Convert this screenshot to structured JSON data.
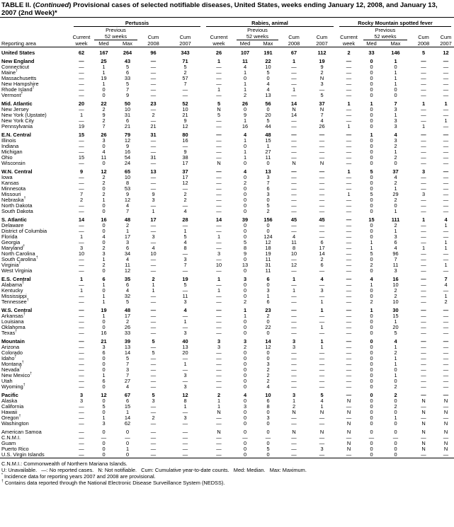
{
  "title": {
    "prefix": "TABLE II. (",
    "italic": "Continued",
    "rest": ") Provisional cases of selected notifiable diseases, United States, weeks ending January 12, 2008, and January 13, 2007 (2nd Week)*"
  },
  "groups": [
    "Pertussis",
    "Rabies, animal",
    "Rocky Mountain spotted fever"
  ],
  "headers": {
    "previous": "Previous",
    "weeks52": "52 weeks",
    "current": "Current",
    "week": "week",
    "cum": "Cum",
    "med": "Med",
    "max": "Max",
    "y2008": "2008",
    "y2007": "2007",
    "reporting_area": "Reporting area"
  },
  "rows": [
    {
      "area": "United States",
      "region": true,
      "v": [
        "62",
        "167",
        "264",
        "96",
        "343",
        "26",
        "107",
        "191",
        "67",
        "112",
        "2",
        "33",
        "146",
        "5",
        "12"
      ]
    },
    {
      "area": "New England",
      "region": true,
      "v": [
        "—",
        "25",
        "43",
        "—",
        "71",
        "1",
        "11",
        "22",
        "1",
        "19",
        "—",
        "0",
        "1",
        "—",
        "—"
      ]
    },
    {
      "area": "Connecticut",
      "v": [
        "—",
        "1",
        "5",
        "—",
        "5",
        "—",
        "4",
        "10",
        "—",
        "9",
        "—",
        "0",
        "0",
        "—",
        "—"
      ]
    },
    {
      "area": "Maine",
      "sup": "†",
      "v": [
        "—",
        "1",
        "6",
        "—",
        "2",
        "—",
        "1",
        "5",
        "—",
        "2",
        "—",
        "0",
        "1",
        "—",
        "—"
      ]
    },
    {
      "area": "Massachusetts",
      "v": [
        "—",
        "19",
        "33",
        "—",
        "57",
        "—",
        "0",
        "0",
        "—",
        "N",
        "—",
        "0",
        "1",
        "—",
        "—"
      ]
    },
    {
      "area": "New Hampshire",
      "v": [
        "—",
        "1",
        "5",
        "—",
        "7",
        "—",
        "1",
        "4",
        "—",
        "3",
        "—",
        "0",
        "1",
        "—",
        "—"
      ]
    },
    {
      "area": "Rhode Island",
      "sup": "†",
      "v": [
        "—",
        "0",
        "7",
        "—",
        "—",
        "1",
        "1",
        "4",
        "1",
        "—",
        "—",
        "0",
        "0",
        "—",
        "—"
      ]
    },
    {
      "area": "Vermont",
      "sup": "†",
      "v": [
        "—",
        "0",
        "9",
        "—",
        "—",
        "—",
        "2",
        "13",
        "—",
        "5",
        "—",
        "0",
        "0",
        "—",
        "—"
      ]
    },
    {
      "area": "Mid. Atlantic",
      "region": true,
      "v": [
        "20",
        "22",
        "50",
        "23",
        "52",
        "5",
        "26",
        "56",
        "14",
        "37",
        "1",
        "1",
        "7",
        "1",
        "1"
      ]
    },
    {
      "area": "New Jersey",
      "v": [
        "—",
        "2",
        "10",
        "—",
        "10",
        "N",
        "0",
        "0",
        "N",
        "N",
        "—",
        "0",
        "3",
        "—",
        "—"
      ]
    },
    {
      "area": "New York (Upstate)",
      "v": [
        "1",
        "9",
        "31",
        "2",
        "21",
        "5",
        "9",
        "20",
        "14",
        "7",
        "—",
        "0",
        "1",
        "—",
        "—"
      ]
    },
    {
      "area": "New York City",
      "v": [
        "—",
        "2",
        "6",
        "—",
        "9",
        "—",
        "1",
        "5",
        "—",
        "4",
        "—",
        "0",
        "3",
        "—",
        "1"
      ]
    },
    {
      "area": "Pennsylvania",
      "v": [
        "19",
        "7",
        "21",
        "21",
        "12",
        "—",
        "16",
        "44",
        "—",
        "26",
        "1",
        "0",
        "3",
        "1",
        "—"
      ]
    },
    {
      "area": "E.N. Central",
      "region": true,
      "v": [
        "15",
        "26",
        "79",
        "31",
        "80",
        "—",
        "4",
        "48",
        "—",
        "—",
        "—",
        "1",
        "4",
        "—",
        "—"
      ]
    },
    {
      "area": "Illinois",
      "v": [
        "—",
        "3",
        "12",
        "—",
        "16",
        "—",
        "1",
        "15",
        "—",
        "—",
        "—",
        "0",
        "3",
        "—",
        "—"
      ]
    },
    {
      "area": "Indiana",
      "v": [
        "—",
        "0",
        "9",
        "—",
        "—",
        "—",
        "0",
        "1",
        "—",
        "—",
        "—",
        "0",
        "2",
        "—",
        "—"
      ]
    },
    {
      "area": "Michigan",
      "v": [
        "—",
        "4",
        "16",
        "—",
        "9",
        "—",
        "1",
        "27",
        "—",
        "—",
        "—",
        "0",
        "1",
        "—",
        "—"
      ]
    },
    {
      "area": "Ohio",
      "v": [
        "15",
        "11",
        "54",
        "31",
        "38",
        "—",
        "1",
        "11",
        "—",
        "—",
        "—",
        "0",
        "2",
        "—",
        "—"
      ]
    },
    {
      "area": "Wisconsin",
      "v": [
        "—",
        "0",
        "24",
        "—",
        "17",
        "N",
        "0",
        "0",
        "N",
        "N",
        "—",
        "0",
        "0",
        "—",
        "—"
      ]
    },
    {
      "area": "W.N. Central",
      "region": true,
      "v": [
        "9",
        "12",
        "65",
        "13",
        "37",
        "—",
        "4",
        "13",
        "—",
        "—",
        "1",
        "5",
        "37",
        "3",
        "—"
      ]
    },
    {
      "area": "Iowa",
      "v": [
        "—",
        "2",
        "10",
        "—",
        "17",
        "—",
        "0",
        "3",
        "—",
        "—",
        "—",
        "0",
        "4",
        "—",
        "—"
      ]
    },
    {
      "area": "Kansas",
      "v": [
        "—",
        "2",
        "8",
        "—",
        "12",
        "—",
        "2",
        "7",
        "—",
        "—",
        "—",
        "0",
        "2",
        "—",
        "—"
      ]
    },
    {
      "area": "Minnesota",
      "v": [
        "—",
        "0",
        "53",
        "—",
        "—",
        "—",
        "0",
        "6",
        "—",
        "—",
        "—",
        "0",
        "1",
        "—",
        "—"
      ]
    },
    {
      "area": "Missouri",
      "v": [
        "7",
        "2",
        "9",
        "9",
        "2",
        "—",
        "0",
        "3",
        "—",
        "—",
        "1",
        "5",
        "29",
        "3",
        "—"
      ]
    },
    {
      "area": "Nebraska",
      "sup": "†",
      "v": [
        "2",
        "1",
        "12",
        "3",
        "2",
        "—",
        "0",
        "0",
        "—",
        "—",
        "—",
        "0",
        "2",
        "—",
        "—"
      ]
    },
    {
      "area": "North Dakota",
      "v": [
        "—",
        "0",
        "4",
        "—",
        "—",
        "—",
        "0",
        "5",
        "—",
        "—",
        "—",
        "0",
        "0",
        "—",
        "—"
      ]
    },
    {
      "area": "South Dakota",
      "v": [
        "—",
        "0",
        "7",
        "1",
        "4",
        "—",
        "0",
        "2",
        "—",
        "—",
        "—",
        "0",
        "1",
        "—",
        "—"
      ]
    },
    {
      "area": "S. Atlantic",
      "region": true,
      "v": [
        "14",
        "16",
        "48",
        "17",
        "28",
        "14",
        "39",
        "156",
        "45",
        "45",
        "—",
        "15",
        "111",
        "1",
        "4"
      ]
    },
    {
      "area": "Delaware",
      "v": [
        "—",
        "0",
        "2",
        "—",
        "—",
        "—",
        "0",
        "0",
        "—",
        "—",
        "—",
        "0",
        "2",
        "—",
        "1"
      ]
    },
    {
      "area": "District of Columbia",
      "v": [
        "—",
        "0",
        "1",
        "—",
        "1",
        "—",
        "0",
        "0",
        "—",
        "—",
        "—",
        "0",
        "1",
        "—",
        "—"
      ]
    },
    {
      "area": "Florida",
      "v": [
        "1",
        "4",
        "17",
        "3",
        "5",
        "1",
        "0",
        "124",
        "4",
        "—",
        "—",
        "0",
        "3",
        "—",
        "—"
      ]
    },
    {
      "area": "Georgia",
      "v": [
        "—",
        "0",
        "3",
        "—",
        "4",
        "—",
        "5",
        "12",
        "11",
        "6",
        "—",
        "1",
        "6",
        "—",
        "1"
      ]
    },
    {
      "area": "Maryland",
      "sup": "†",
      "v": [
        "3",
        "2",
        "6",
        "4",
        "8",
        "—",
        "8",
        "18",
        "8",
        "17",
        "—",
        "1",
        "4",
        "1",
        "1"
      ]
    },
    {
      "area": "North Carolina",
      "v": [
        "10",
        "3",
        "34",
        "10",
        "—",
        "3",
        "9",
        "19",
        "10",
        "14",
        "—",
        "5",
        "96",
        "—",
        "—"
      ]
    },
    {
      "area": "South Carolina",
      "sup": "†",
      "v": [
        "—",
        "1",
        "4",
        "—",
        "3",
        "—",
        "0",
        "11",
        "—",
        "2",
        "—",
        "0",
        "7",
        "—",
        "—"
      ]
    },
    {
      "area": "Virginia",
      "sup": "†",
      "v": [
        "—",
        "2",
        "11",
        "—",
        "7",
        "10",
        "13",
        "31",
        "12",
        "6",
        "—",
        "2",
        "11",
        "—",
        "1"
      ]
    },
    {
      "area": "West Virginia",
      "v": [
        "—",
        "0",
        "12",
        "—",
        "—",
        "—",
        "0",
        "11",
        "—",
        "—",
        "—",
        "0",
        "3",
        "—",
        "—"
      ]
    },
    {
      "area": "E.S. Central",
      "region": true,
      "v": [
        "1",
        "6",
        "35",
        "2",
        "19",
        "1",
        "3",
        "6",
        "1",
        "4",
        "—",
        "4",
        "16",
        "—",
        "7"
      ]
    },
    {
      "area": "Alabama",
      "sup": "†",
      "v": [
        "—",
        "1",
        "6",
        "1",
        "5",
        "—",
        "0",
        "0",
        "—",
        "—",
        "—",
        "1",
        "10",
        "—",
        "4"
      ]
    },
    {
      "area": "Kentucky",
      "v": [
        "1",
        "0",
        "4",
        "1",
        "—",
        "1",
        "0",
        "3",
        "1",
        "3",
        "—",
        "0",
        "2",
        "—",
        "—"
      ]
    },
    {
      "area": "Mississippi",
      "v": [
        "—",
        "1",
        "32",
        "—",
        "11",
        "—",
        "0",
        "1",
        "—",
        "—",
        "—",
        "0",
        "2",
        "—",
        "1"
      ]
    },
    {
      "area": "Tennessee",
      "sup": "†",
      "v": [
        "—",
        "1",
        "5",
        "—",
        "3",
        "—",
        "2",
        "6",
        "—",
        "1",
        "—",
        "2",
        "10",
        "—",
        "2"
      ]
    },
    {
      "area": "W.S. Central",
      "region": true,
      "v": [
        "—",
        "19",
        "48",
        "—",
        "4",
        "—",
        "1",
        "23",
        "—",
        "1",
        "—",
        "1",
        "30",
        "—",
        "—"
      ]
    },
    {
      "area": "Arkansas",
      "sup": "†",
      "v": [
        "—",
        "1",
        "17",
        "—",
        "—",
        "—",
        "1",
        "2",
        "—",
        "—",
        "—",
        "0",
        "15",
        "—",
        "—"
      ]
    },
    {
      "area": "Louisiana",
      "v": [
        "—",
        "0",
        "2",
        "—",
        "1",
        "—",
        "0",
        "0",
        "—",
        "—",
        "—",
        "0",
        "1",
        "—",
        "—"
      ]
    },
    {
      "area": "Oklahoma",
      "v": [
        "—",
        "0",
        "26",
        "—",
        "—",
        "—",
        "0",
        "22",
        "—",
        "1",
        "—",
        "0",
        "20",
        "—",
        "—"
      ]
    },
    {
      "area": "Texas",
      "sup": "†",
      "v": [
        "—",
        "16",
        "33",
        "—",
        "3",
        "—",
        "0",
        "0",
        "—",
        "—",
        "—",
        "0",
        "5",
        "—",
        "—"
      ]
    },
    {
      "area": "Mountain",
      "region": true,
      "v": [
        "—",
        "21",
        "39",
        "5",
        "40",
        "3",
        "3",
        "14",
        "3",
        "1",
        "—",
        "0",
        "4",
        "—",
        "—"
      ]
    },
    {
      "area": "Arizona",
      "v": [
        "—",
        "3",
        "13",
        "—",
        "13",
        "3",
        "2",
        "12",
        "3",
        "1",
        "—",
        "0",
        "1",
        "—",
        "—"
      ]
    },
    {
      "area": "Colorado",
      "v": [
        "—",
        "6",
        "14",
        "5",
        "20",
        "—",
        "0",
        "0",
        "—",
        "—",
        "—",
        "0",
        "2",
        "—",
        "—"
      ]
    },
    {
      "area": "Idaho",
      "sup": "†",
      "v": [
        "—",
        "0",
        "5",
        "—",
        "—",
        "—",
        "0",
        "0",
        "—",
        "—",
        "—",
        "0",
        "1",
        "—",
        "—"
      ]
    },
    {
      "area": "Montana",
      "sup": "†",
      "v": [
        "—",
        "0",
        "7",
        "—",
        "1",
        "—",
        "0",
        "3",
        "—",
        "—",
        "—",
        "0",
        "1",
        "—",
        "—"
      ]
    },
    {
      "area": "Nevada",
      "sup": "†",
      "v": [
        "—",
        "0",
        "3",
        "—",
        "—",
        "—",
        "0",
        "2",
        "—",
        "—",
        "—",
        "0",
        "0",
        "—",
        "—"
      ]
    },
    {
      "area": "New Mexico",
      "sup": "†",
      "v": [
        "—",
        "1",
        "7",
        "—",
        "3",
        "—",
        "0",
        "2",
        "—",
        "—",
        "—",
        "0",
        "1",
        "—",
        "—"
      ]
    },
    {
      "area": "Utah",
      "v": [
        "—",
        "6",
        "27",
        "—",
        "—",
        "—",
        "0",
        "2",
        "—",
        "—",
        "—",
        "0",
        "0",
        "—",
        "—"
      ]
    },
    {
      "area": "Wyoming",
      "sup": "†",
      "v": [
        "—",
        "0",
        "4",
        "—",
        "3",
        "—",
        "0",
        "4",
        "—",
        "—",
        "—",
        "0",
        "2",
        "—",
        "—"
      ]
    },
    {
      "area": "Pacific",
      "region": true,
      "v": [
        "3",
        "12",
        "67",
        "5",
        "12",
        "2",
        "4",
        "10",
        "3",
        "5",
        "—",
        "0",
        "2",
        "—",
        "—"
      ]
    },
    {
      "area": "Alaska",
      "v": [
        "3",
        "0",
        "6",
        "3",
        "8",
        "1",
        "0",
        "6",
        "1",
        "4",
        "N",
        "0",
        "0",
        "N",
        "N"
      ]
    },
    {
      "area": "California",
      "v": [
        "—",
        "5",
        "15",
        "—",
        "1",
        "1",
        "3",
        "8",
        "2",
        "1",
        "—",
        "0",
        "2",
        "—",
        "—"
      ]
    },
    {
      "area": "Hawaii",
      "v": [
        "—",
        "0",
        "1",
        "—",
        "—",
        "N",
        "0",
        "0",
        "N",
        "N",
        "N",
        "0",
        "0",
        "N",
        "N"
      ]
    },
    {
      "area": "Oregon",
      "sup": "†",
      "v": [
        "—",
        "1",
        "14",
        "2",
        "3",
        "—",
        "0",
        "3",
        "—",
        "—",
        "—",
        "0",
        "1",
        "—",
        "—"
      ]
    },
    {
      "area": "Washington",
      "v": [
        "—",
        "3",
        "62",
        "—",
        "—",
        "—",
        "0",
        "0",
        "—",
        "—",
        "N",
        "0",
        "0",
        "N",
        "N"
      ]
    },
    {
      "area": "American Samoa",
      "region": true,
      "plain": true,
      "v": [
        "—",
        "0",
        "0",
        "—",
        "—",
        "N",
        "0",
        "0",
        "N",
        "N",
        "N",
        "0",
        "0",
        "N",
        "N"
      ]
    },
    {
      "area": "C.N.M.I.",
      "v": [
        "—",
        "—",
        "—",
        "—",
        "—",
        "—",
        "—",
        "—",
        "—",
        "—",
        "—",
        "—",
        "—",
        "—",
        "—"
      ]
    },
    {
      "area": "Guam",
      "v": [
        "—",
        "0",
        "0",
        "—",
        "—",
        "—",
        "0",
        "0",
        "—",
        "—",
        "N",
        "0",
        "0",
        "N",
        "N"
      ]
    },
    {
      "area": "Puerto Rico",
      "v": [
        "—",
        "0",
        "1",
        "—",
        "—",
        "—",
        "0",
        "5",
        "—",
        "3",
        "N",
        "0",
        "0",
        "N",
        "N"
      ]
    },
    {
      "area": "U.S. Virgin Islands",
      "v": [
        "—",
        "0",
        "0",
        "—",
        "—",
        "—",
        "0",
        "0",
        "—",
        "—",
        "—",
        "0",
        "0",
        "—",
        "—"
      ]
    }
  ],
  "footnotes": {
    "cnmi": "C.N.M.I.: Commonwealth of Northern Mariana Islands.",
    "legend": "U: Unavailable.   —: No reported cases.   N: Not notifiable.   Cum: Cumulative year-to-date counts.   Med: Median.   Max: Maximum.",
    "star_mark": "*",
    "star": "Incidence data for reporting years 2007 and 2008 are provisional.",
    "dagger_mark": "†",
    "dagger": "Contains data reported through the National Electronic Disease Surveillance System (NEDSS)."
  }
}
